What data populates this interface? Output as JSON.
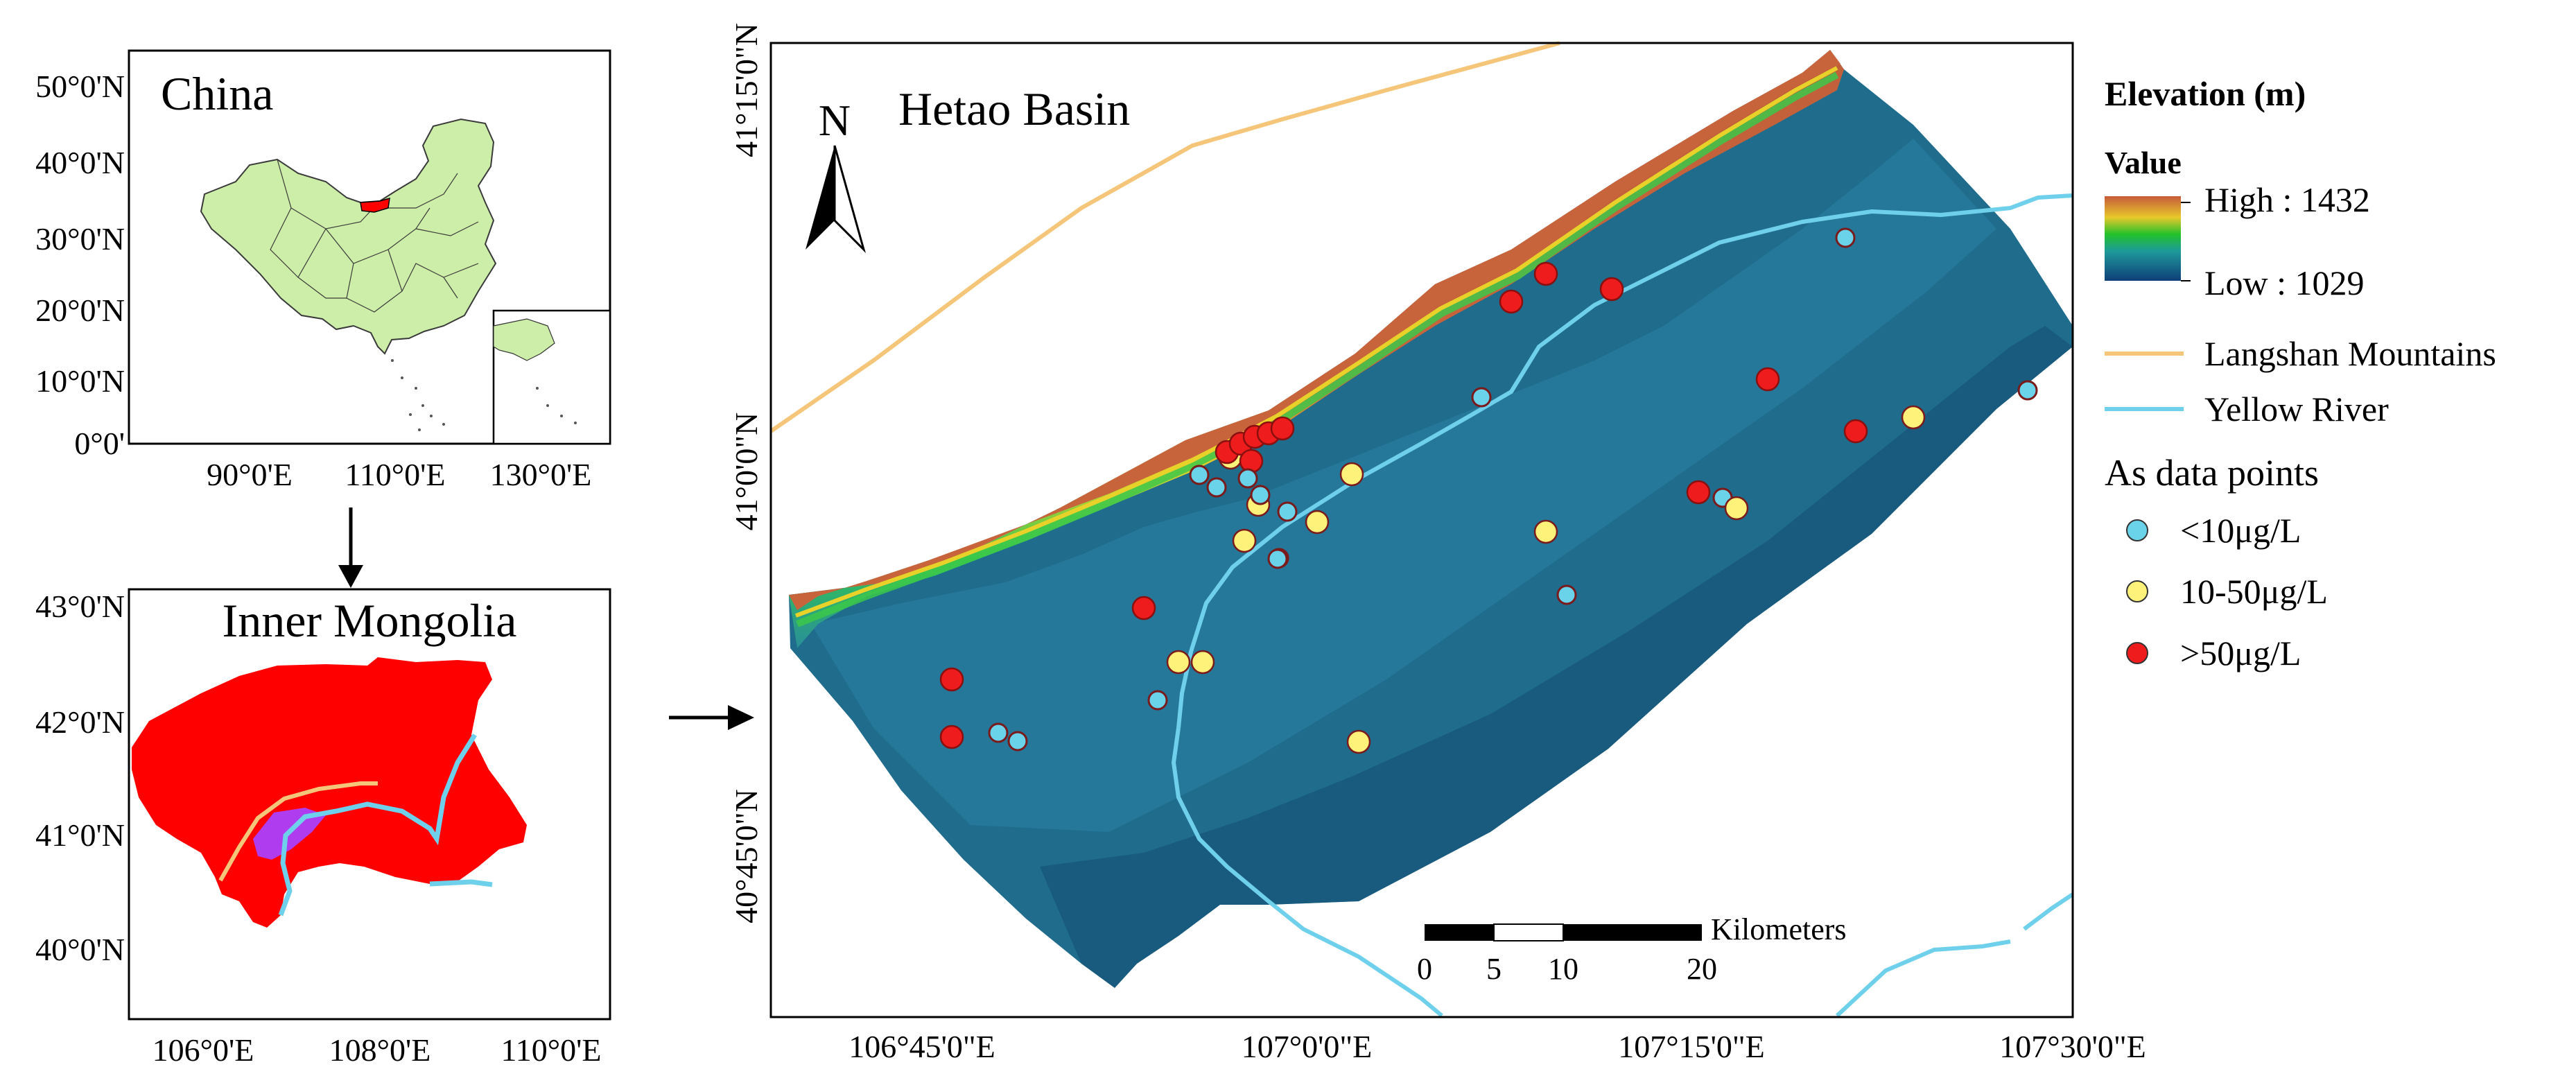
{
  "china_panel": {
    "title": "China",
    "lat_ticks": [
      "50°0'N",
      "40°0'N",
      "30°0'N",
      "20°0'N",
      "10°0'N",
      "0°0'"
    ],
    "lon_ticks": [
      "90°0'E",
      "110°0'E",
      "130°0'E"
    ]
  },
  "inner_mongolia_panel": {
    "title": "Inner Mongolia",
    "lat_ticks": [
      "43°0'N",
      "42°0'N",
      "41°0'N",
      "40°0'N"
    ],
    "lon_ticks": [
      "106°0'E",
      "108°0'E",
      "110°0'E"
    ]
  },
  "main_map": {
    "title": "Hetao Basin",
    "north_label": "N",
    "lat_ticks": [
      "41°15'0\"N",
      "41°0'0\"N",
      "40°45'0\"N"
    ],
    "lon_ticks": [
      "106°45'0\"E",
      "107°0'0\"E",
      "107°15'0\"E",
      "107°30'0\"E"
    ],
    "scale_bar": {
      "unit_label": "Kilometers",
      "ticks": [
        "0",
        "5",
        "10",
        "20"
      ]
    }
  },
  "legend": {
    "elevation_title": "Elevation (m)",
    "value_label": "Value",
    "high_label": "High : 1432",
    "low_label": "Low : 1029",
    "line_items": [
      {
        "label": "Langshan Mountains",
        "color": "#f5c67a"
      },
      {
        "label": "Yellow River",
        "color": "#6fd0ec"
      }
    ],
    "points_title": "As data points",
    "point_items": [
      {
        "label": "<10μg/L",
        "color": "#6ad3ea"
      },
      {
        "label": "10-50μg/L",
        "color": "#fff27a"
      },
      {
        "label": ">50μg/L",
        "color": "#ee1c1c"
      }
    ]
  },
  "colors": {
    "basin_deep": "#155c7a",
    "basin_mid": "#2c7fa0",
    "mountain": "#c8643c",
    "china_fill": "#cdeea8",
    "region_red": "#ff0000",
    "basin_purple": "#b03cf0"
  }
}
